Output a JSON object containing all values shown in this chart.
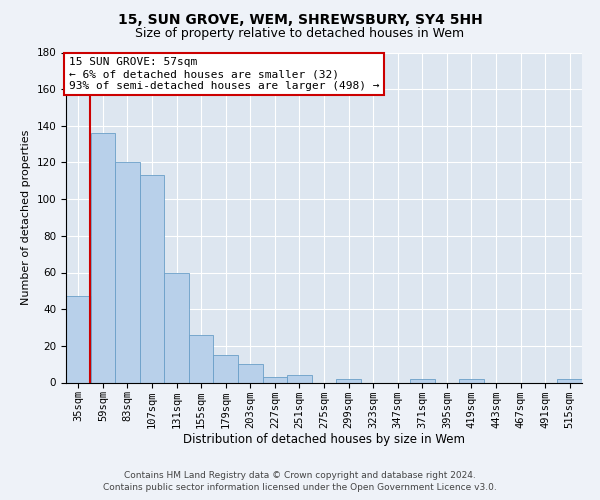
{
  "title1": "15, SUN GROVE, WEM, SHREWSBURY, SY4 5HH",
  "title2": "Size of property relative to detached houses in Wem",
  "xlabel": "Distribution of detached houses by size in Wem",
  "ylabel": "Number of detached properties",
  "footnote": "Contains HM Land Registry data © Crown copyright and database right 2024.\nContains public sector information licensed under the Open Government Licence v3.0.",
  "categories": [
    "35sqm",
    "59sqm",
    "83sqm",
    "107sqm",
    "131sqm",
    "155sqm",
    "179sqm",
    "203sqm",
    "227sqm",
    "251sqm",
    "275sqm",
    "299sqm",
    "323sqm",
    "347sqm",
    "371sqm",
    "395sqm",
    "419sqm",
    "443sqm",
    "467sqm",
    "491sqm",
    "515sqm"
  ],
  "values": [
    47,
    136,
    120,
    113,
    60,
    26,
    15,
    10,
    3,
    4,
    0,
    2,
    0,
    0,
    2,
    0,
    2,
    0,
    0,
    0,
    2
  ],
  "bar_color": "#b8d0ea",
  "bar_edge_color": "#6a9fc8",
  "highlight_line_color": "#cc0000",
  "annotation_line1": "15 SUN GROVE: 57sqm",
  "annotation_line2": "← 6% of detached houses are smaller (32)",
  "annotation_line3": "93% of semi-detached houses are larger (498) →",
  "annotation_box_color": "#ffffff",
  "annotation_box_edge": "#cc0000",
  "ylim": [
    0,
    180
  ],
  "yticks": [
    0,
    20,
    40,
    60,
    80,
    100,
    120,
    140,
    160,
    180
  ],
  "bg_color": "#eef2f8",
  "plot_bg_color": "#dde6f0",
  "title1_fontsize": 10,
  "title2_fontsize": 9,
  "xlabel_fontsize": 8.5,
  "ylabel_fontsize": 8,
  "tick_fontsize": 7.5,
  "annot_fontsize": 8,
  "footnote_fontsize": 6.5
}
